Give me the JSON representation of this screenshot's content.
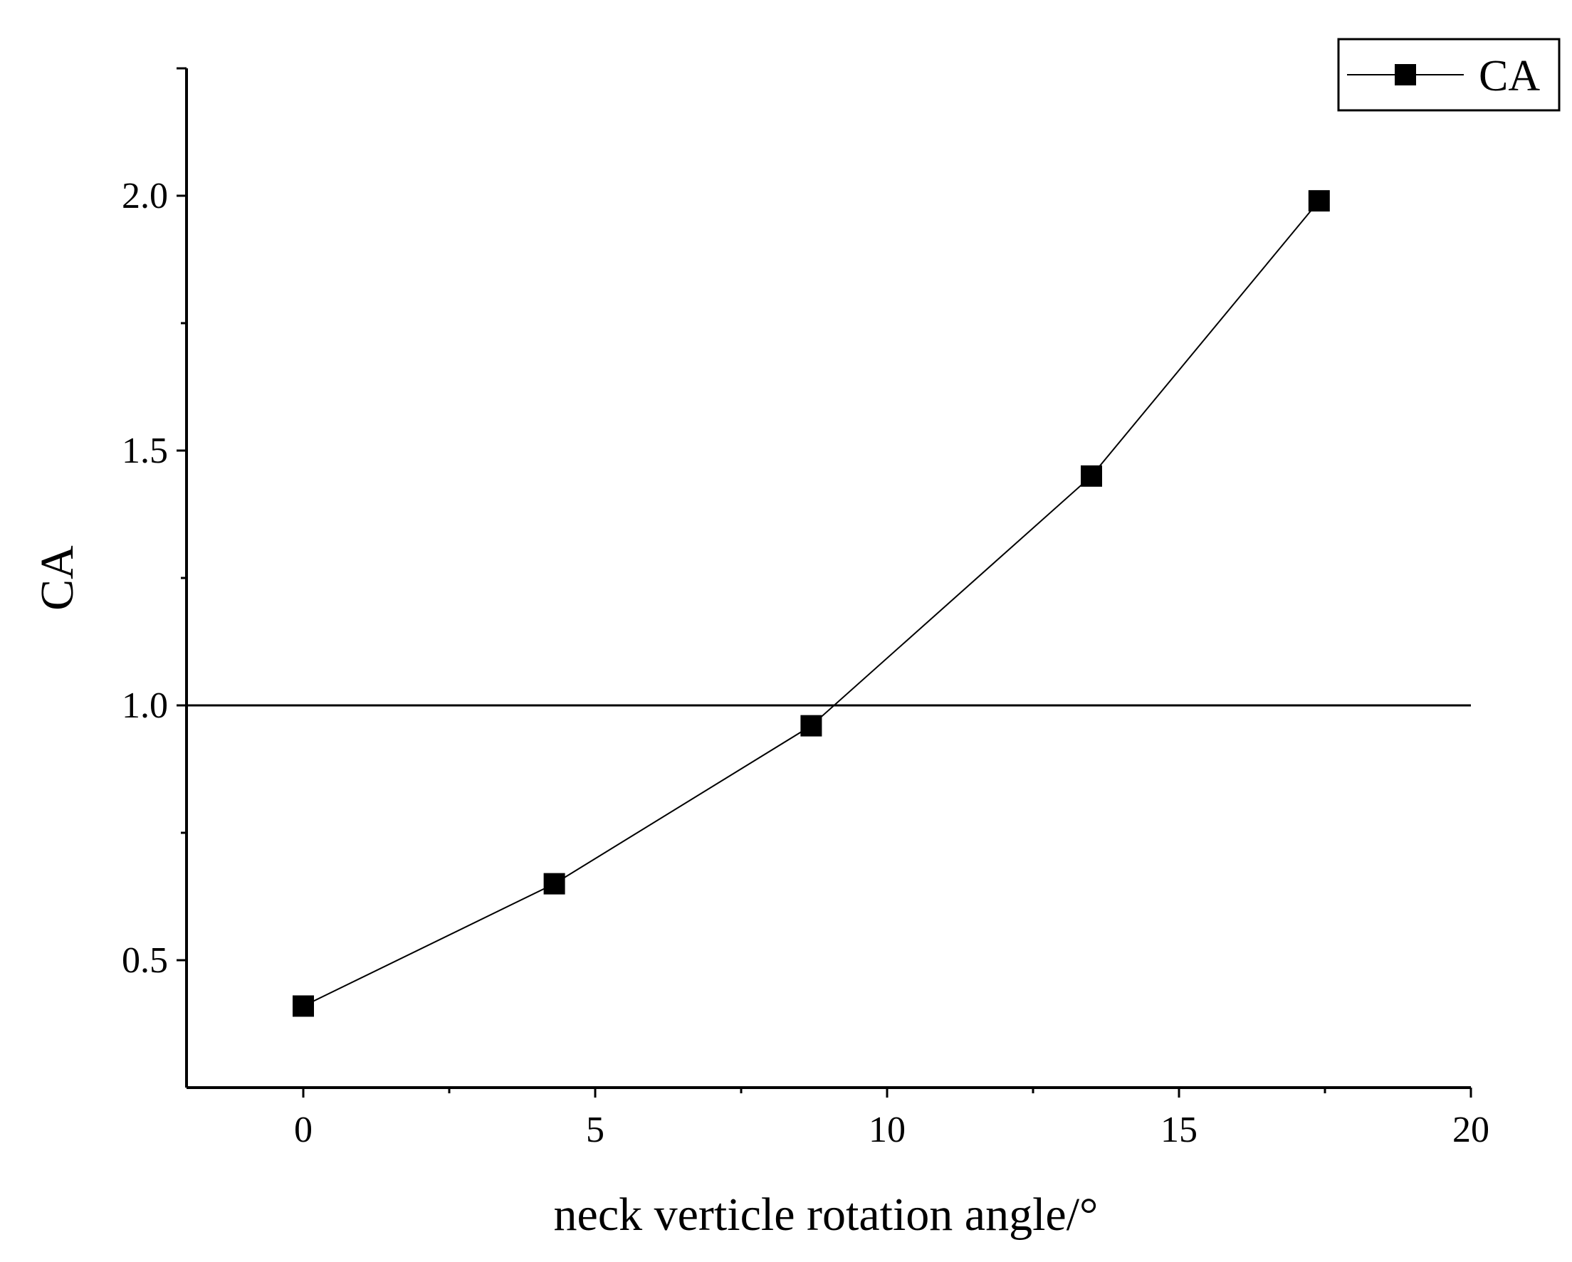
{
  "chart_data": {
    "type": "line",
    "title": "",
    "xlabel": "neck verticle rotation angle/°",
    "ylabel": "CA",
    "xlim": [
      -2,
      20
    ],
    "ylim": [
      0.25,
      2.25
    ],
    "x_ticks": [
      0,
      5,
      10,
      15,
      20
    ],
    "x_tick_labels": [
      "0",
      "5",
      "10",
      "15",
      "20"
    ],
    "y_ticks": [
      0.5,
      1.0,
      1.5,
      2.0
    ],
    "y_tick_labels": [
      "0.5",
      "1.0",
      "1.5",
      "2.0"
    ],
    "grid": false,
    "legend_position": "top-right",
    "reference_line": {
      "y": 1.0
    },
    "series": [
      {
        "name": "CA",
        "marker": "square",
        "color": "#000000",
        "x": [
          0,
          4.3,
          8.7,
          13.5,
          17.4
        ],
        "y": [
          0.41,
          0.65,
          0.96,
          1.45,
          1.99
        ]
      }
    ]
  }
}
